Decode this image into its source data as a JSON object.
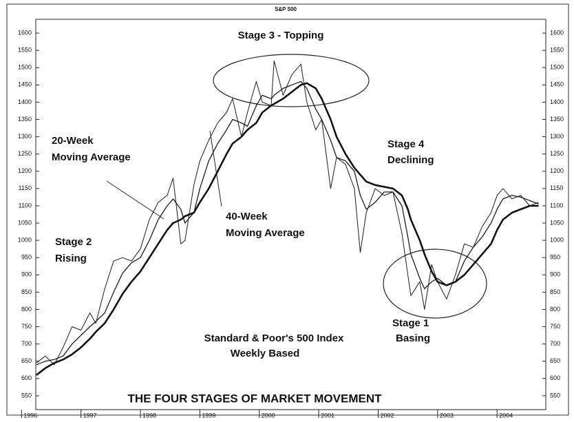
{
  "chart_data": {
    "type": "line",
    "title": "THE FOUR STAGES OF MARKET MOVEMENT",
    "subtitle": "S&P 500",
    "annotations": [
      [
        "Stage 3 - Topping"
      ],
      [
        "20-Week",
        "Moving Average"
      ],
      [
        "40-Week",
        "Moving Average"
      ],
      [
        "Stage 4",
        "Declining"
      ],
      [
        "Stage 2",
        "Rising"
      ],
      [
        "Stage 1",
        "Basing"
      ],
      [
        "Standard & Poor's 500 Index",
        "Weekly Based"
      ]
    ],
    "x": [
      1996.25,
      1996.4,
      1996.55,
      1996.7,
      1996.85,
      1997.0,
      1997.15,
      1997.25,
      1997.4,
      1997.55,
      1997.7,
      1997.85,
      1998.0,
      1998.15,
      1998.3,
      1998.45,
      1998.55,
      1998.68,
      1998.75,
      1998.9,
      1999.0,
      1999.15,
      1999.3,
      1999.45,
      1999.55,
      1999.7,
      1999.8,
      1999.95,
      2000.05,
      2000.2,
      2000.25,
      2000.4,
      2000.55,
      2000.7,
      2000.8,
      2000.95,
      2001.05,
      2001.2,
      2001.3,
      2001.45,
      2001.6,
      2001.7,
      2001.8,
      2001.95,
      2002.1,
      2002.25,
      2002.4,
      2002.5,
      2002.55,
      2002.7,
      2002.78,
      2002.9,
      2003.0,
      2003.15,
      2003.3,
      2003.45,
      2003.6,
      2003.75,
      2003.9,
      2004.0,
      2004.1,
      2004.25,
      2004.4,
      2004.55,
      2004.7
    ],
    "series": [
      {
        "color": "#1a1a1a",
        "values": [
          645,
          665,
          640,
          690,
          750,
          740,
          790,
          760,
          860,
          940,
          950,
          940,
          975,
          1060,
          1110,
          1130,
          1180,
          990,
          1000,
          1160,
          1230,
          1290,
          1340,
          1370,
          1410,
          1300,
          1370,
          1460,
          1400,
          1390,
          1520,
          1420,
          1480,
          1510,
          1400,
          1320,
          1350,
          1150,
          1240,
          1220,
          1150,
          965,
          1080,
          1150,
          1130,
          1140,
          1020,
          900,
          840,
          880,
          800,
          930,
          880,
          830,
          900,
          990,
          980,
          1040,
          1080,
          1130,
          1150,
          1120,
          1130,
          1100,
          1110
        ]
      },
      {
        "color": "#1a1a1a",
        "values": [
          640,
          650,
          655,
          665,
          700,
          725,
          750,
          765,
          790,
          850,
          905,
          935,
          950,
          1000,
          1060,
          1100,
          1120,
          1090,
          1050,
          1080,
          1150,
          1230,
          1280,
          1320,
          1350,
          1340,
          1330,
          1390,
          1420,
          1410,
          1420,
          1440,
          1450,
          1460,
          1440,
          1380,
          1350,
          1290,
          1240,
          1230,
          1200,
          1130,
          1090,
          1110,
          1140,
          1140,
          1100,
          1010,
          960,
          890,
          860,
          880,
          890,
          870,
          880,
          940,
          980,
          1010,
          1050,
          1090,
          1120,
          1130,
          1125,
          1115,
          1105
        ]
      },
      {
        "color": "#111111",
        "values": [
          610,
          630,
          645,
          655,
          670,
          690,
          715,
          735,
          760,
          800,
          845,
          880,
          910,
          950,
          990,
          1030,
          1050,
          1060,
          1070,
          1080,
          1110,
          1150,
          1200,
          1250,
          1280,
          1300,
          1320,
          1340,
          1370,
          1390,
          1395,
          1410,
          1430,
          1450,
          1455,
          1440,
          1410,
          1350,
          1300,
          1250,
          1210,
          1190,
          1170,
          1160,
          1155,
          1150,
          1130,
          1090,
          1060,
          1000,
          960,
          910,
          880,
          870,
          880,
          900,
          930,
          960,
          990,
          1030,
          1060,
          1080,
          1090,
          1100,
          1100
        ]
      }
    ],
    "xlim": [
      1996.24,
      2004.82
    ],
    "xticks": [
      1996,
      1997,
      1998,
      1999,
      2000,
      2001,
      2002,
      2003,
      2004
    ],
    "ylim": [
      510,
      1640
    ],
    "yticks": [
      550,
      600,
      650,
      700,
      750,
      800,
      850,
      900,
      950,
      1000,
      1050,
      1100,
      1150,
      1200,
      1250,
      1300,
      1350,
      1400,
      1450,
      1500,
      1550,
      1600
    ]
  }
}
